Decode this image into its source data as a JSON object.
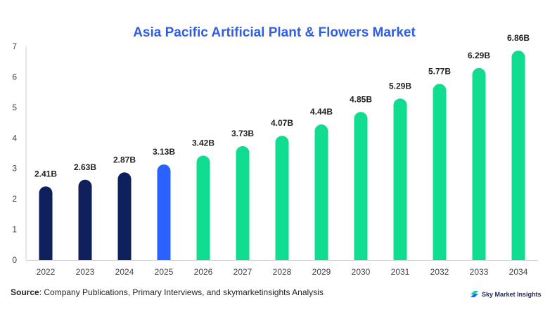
{
  "chart_data": {
    "type": "bar",
    "title": "Asia Pacific Artificial Plant & Flowers Market",
    "categories": [
      "2022",
      "2023",
      "2024",
      "2025",
      "2026",
      "2027",
      "2028",
      "2029",
      "2030",
      "2031",
      "2032",
      "2033",
      "2034"
    ],
    "values": [
      2.41,
      2.63,
      2.87,
      3.13,
      3.42,
      3.73,
      4.07,
      4.44,
      4.85,
      5.29,
      5.77,
      6.29,
      6.86
    ],
    "data_labels": [
      "2.41B",
      "2.63B",
      "2.87B",
      "3.13B",
      "3.42B",
      "3.73B",
      "4.07B",
      "4.44B",
      "4.85B",
      "5.29B",
      "5.77B",
      "6.29B",
      "6.86B"
    ],
    "bar_colors": [
      "#0e1f5b",
      "#0e1f5b",
      "#0e1f5b",
      "#2962ff",
      "#0fdc8f",
      "#0fdc8f",
      "#0fdc8f",
      "#0fdc8f",
      "#0fdc8f",
      "#0fdc8f",
      "#0fdc8f",
      "#0fdc8f",
      "#0fdc8f"
    ],
    "ylim": [
      0,
      7
    ],
    "yticks": [
      "0",
      "1",
      "2",
      "3",
      "4",
      "5",
      "6",
      "7"
    ],
    "xlabel": "",
    "ylabel": "",
    "grid": false
  },
  "footer": {
    "source_label": "Source",
    "source_text": ": Company Publications, Primary Interviews, and skymarketinsights Analysis",
    "brand_name": "Sky Market Insights",
    "brand_icon": "sky-market-insights-logo-icon"
  }
}
